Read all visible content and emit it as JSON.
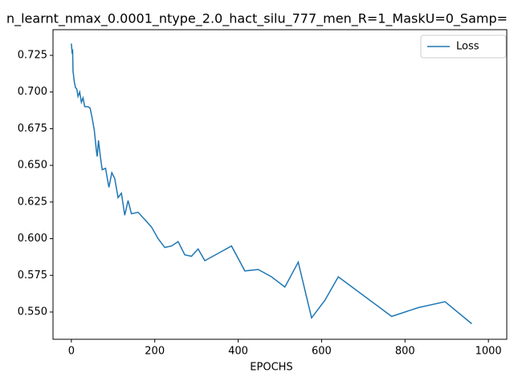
{
  "chart_data": {
    "type": "line",
    "title": "n_learnt_nmax_0.0001_ntype_2.0_hact_silu_777_men_R=1_MaskU=0_Samp=",
    "x_label": "EPOCHS",
    "x": [
      0,
      2,
      3,
      4,
      5,
      7,
      10,
      13,
      16,
      20,
      24,
      28,
      32,
      40,
      45,
      50,
      55,
      60,
      62,
      65,
      70,
      74,
      82,
      90,
      97,
      104,
      112,
      120,
      128,
      136,
      144,
      160,
      176,
      192,
      208,
      224,
      240,
      256,
      272,
      288,
      304,
      320,
      352,
      384,
      416,
      448,
      480,
      512,
      544,
      576,
      608,
      640,
      768,
      832,
      896,
      960
    ],
    "series": [
      {
        "name": "Loss",
        "color": "#1f77b4",
        "values": [
          0.733,
          0.726,
          0.729,
          0.714,
          0.712,
          0.707,
          0.703,
          0.702,
          0.697,
          0.7,
          0.693,
          0.696,
          0.69,
          0.69,
          0.689,
          0.682,
          0.674,
          0.66,
          0.656,
          0.667,
          0.655,
          0.647,
          0.648,
          0.635,
          0.645,
          0.641,
          0.628,
          0.631,
          0.616,
          0.626,
          0.617,
          0.618,
          0.613,
          0.608,
          0.6,
          0.594,
          0.595,
          0.598,
          0.589,
          0.588,
          0.593,
          0.585,
          0.59,
          0.595,
          0.578,
          0.579,
          0.574,
          0.567,
          0.584,
          0.546,
          0.558,
          0.574,
          0.547,
          0.553,
          0.557,
          0.542
        ]
      }
    ],
    "xlim": [
      -44,
      1044
    ],
    "xticks": [
      0,
      200,
      400,
      600,
      800,
      1000
    ],
    "ylim": [
      0.5314,
      0.7425
    ],
    "yticks": [
      {
        "value": 0.55,
        "label": "0.550"
      },
      {
        "value": 0.575,
        "label": "0.575"
      },
      {
        "value": 0.6,
        "label": "0.600"
      },
      {
        "value": 0.625,
        "label": "0.625"
      },
      {
        "value": 0.65,
        "label": "0.650"
      },
      {
        "value": 0.675,
        "label": "0.675"
      },
      {
        "value": 0.7,
        "label": "0.700"
      },
      {
        "value": 0.725,
        "label": "0.725"
      }
    ],
    "legend": "upper right"
  }
}
